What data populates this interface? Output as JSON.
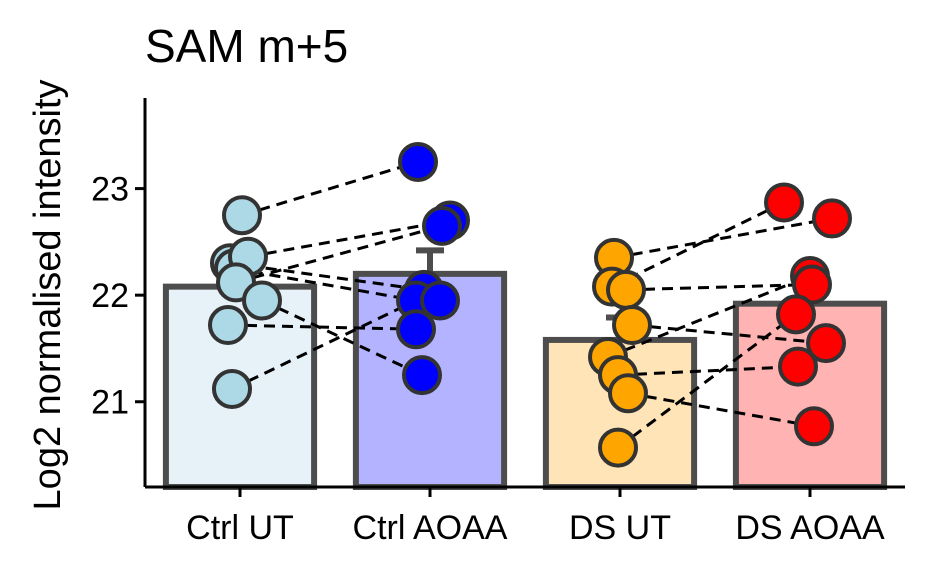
{
  "chart_data": {
    "type": "bar",
    "title": "SAM m+5",
    "xlabel": "",
    "ylabel": "Log2 normalised intensity",
    "ylim": [
      20.2,
      23.85
    ],
    "yticks": [
      21,
      22,
      23
    ],
    "grid": false,
    "legend": "none",
    "categories": [
      "Ctrl UT",
      "Ctrl AOAA",
      "DS UT",
      "DS AOAA"
    ],
    "bars": [
      {
        "category": "Ctrl UT",
        "mean": 22.08,
        "error_upper": 22.08,
        "fill": "#e6f2f8",
        "point_color": "#add8e6"
      },
      {
        "category": "Ctrl AOAA",
        "mean": 22.2,
        "error_upper": 22.42,
        "fill": "#b3b3ff",
        "point_color": "#0000ff"
      },
      {
        "category": "DS UT",
        "mean": 21.58,
        "error_upper": 21.79,
        "fill": "#ffe4b8",
        "point_color": "#ffa500"
      },
      {
        "category": "DS AOAA",
        "mean": 21.92,
        "error_upper": 21.92,
        "fill": "#ffb3b3",
        "point_color": "#ff0000"
      }
    ],
    "points": {
      "Ctrl UT": [
        22.75,
        22.3,
        22.25,
        22.36,
        22.12,
        21.95,
        21.72,
        21.12
      ],
      "Ctrl AOAA": [
        23.25,
        22.7,
        22.65,
        22.05,
        21.95,
        21.95,
        21.68,
        21.25
      ],
      "DS UT": [
        22.35,
        22.08,
        22.05,
        21.72,
        21.42,
        21.25,
        21.08,
        20.57
      ],
      "DS AOAA": [
        22.87,
        22.72,
        22.18,
        22.1,
        21.82,
        21.55,
        21.33,
        20.77
      ]
    },
    "pairs": [
      {
        "from": "Ctrl UT",
        "to": "Ctrl AOAA",
        "links": [
          [
            22.75,
            23.25
          ],
          [
            22.36,
            22.7
          ],
          [
            22.3,
            22.05
          ],
          [
            22.25,
            21.95
          ],
          [
            22.12,
            22.65
          ],
          [
            21.95,
            21.25
          ],
          [
            21.72,
            21.68
          ],
          [
            21.12,
            21.95
          ]
        ]
      },
      {
        "from": "DS UT",
        "to": "DS AOAA",
        "links": [
          [
            22.35,
            22.72
          ],
          [
            22.08,
            22.87
          ],
          [
            22.05,
            22.1
          ],
          [
            21.72,
            21.55
          ],
          [
            21.42,
            22.18
          ],
          [
            21.25,
            21.33
          ],
          [
            21.08,
            20.77
          ],
          [
            20.57,
            21.82
          ]
        ]
      }
    ],
    "colors": {
      "bar_stroke": "#4d4d4d",
      "point_stroke": "#333333",
      "axis": "#000000",
      "pair_line": "#000000"
    }
  }
}
